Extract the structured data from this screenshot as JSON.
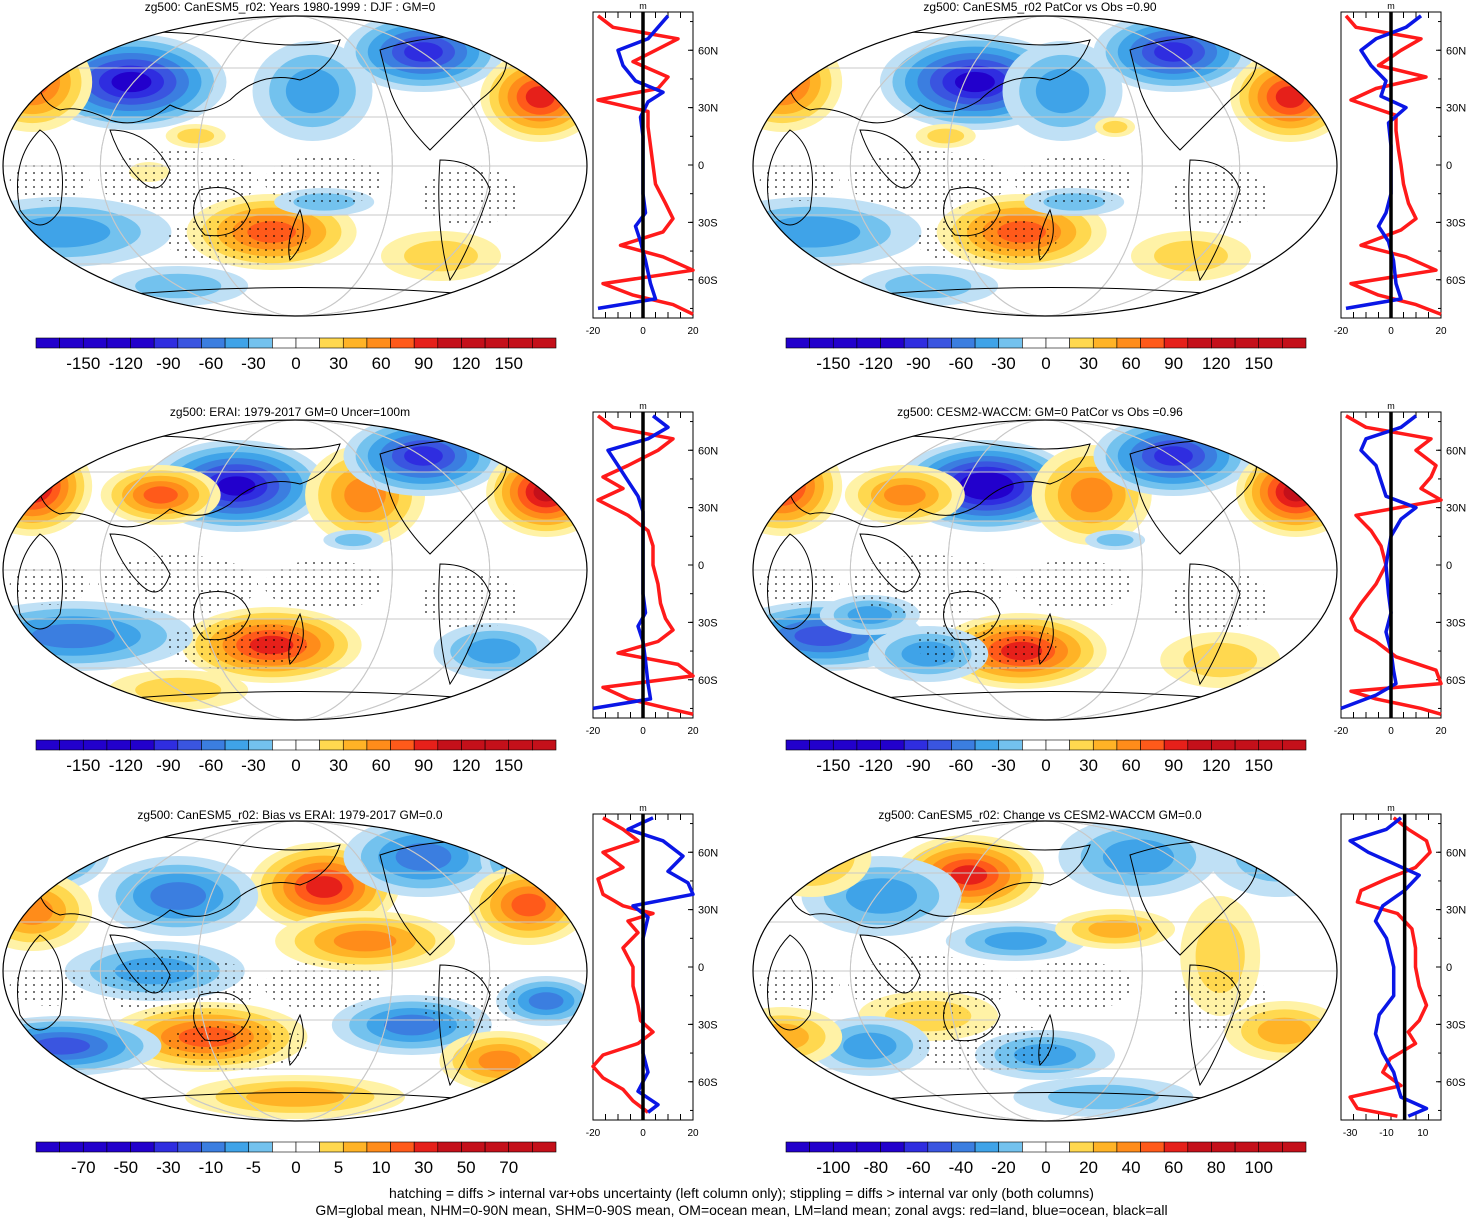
{
  "colors": {
    "warm": [
      "#ffffff",
      "#fff2a6",
      "#ffd84f",
      "#ffb326",
      "#ff8c1a",
      "#ff5a1a",
      "#e6201a",
      "#c4101a"
    ],
    "cool": [
      "#ffffff",
      "#bfe0f5",
      "#73c2ee",
      "#3fa3e8",
      "#3b7ee0",
      "#3a55e0",
      "#2f2de0",
      "#2200cc"
    ],
    "land_profile": "#ff1a1a",
    "ocean_profile": "#0a16e6",
    "all_profile": "#000000",
    "grid": "#c8c8c8"
  },
  "footer": {
    "line1": "hatching = diffs > internal var+obs uncertainty (left column only); stippling = diffs > internal var only (both columns)",
    "line2": "GM=global mean, NHM=0-90N mean, SHM=0-90S mean, OM=ocean mean, LM=land mean; zonal avgs: red=land, blue=ocean, black=all"
  },
  "panels": [
    {
      "title": "zg500: CanESM5_r02: Years 1980-1999 : DJF : GM=0",
      "colorbar": {
        "labels": [
          "-150",
          "-120",
          "-90",
          "-60",
          "-30",
          "0",
          "30",
          "60",
          "90",
          "120",
          "150"
        ],
        "n_bins": 22
      },
      "profile": {
        "unit": "m",
        "xticks": [
          "-20",
          "0",
          "20"
        ],
        "xlim": [
          -20,
          20
        ],
        "lat_labels": [
          "60N",
          "30N",
          "0",
          "30S",
          "60S"
        ],
        "lat_values": [
          60,
          30,
          0,
          -30,
          -60
        ],
        "blue": [
          [
            78,
            10
          ],
          [
            72,
            6
          ],
          [
            66,
            2
          ],
          [
            60,
            -10
          ],
          [
            52,
            -8
          ],
          [
            44,
            -3
          ],
          [
            38,
            8
          ],
          [
            33,
            2
          ],
          [
            25,
            -1
          ],
          [
            15,
            0
          ],
          [
            0,
            0
          ],
          [
            -15,
            0
          ],
          [
            -25,
            1
          ],
          [
            -32,
            -3
          ],
          [
            -40,
            -1
          ],
          [
            -50,
            1
          ],
          [
            -62,
            3
          ],
          [
            -70,
            5
          ],
          [
            -75,
            -18
          ]
        ],
        "red": [
          [
            78,
            -18
          ],
          [
            72,
            -12
          ],
          [
            66,
            14
          ],
          [
            60,
            5
          ],
          [
            54,
            -4
          ],
          [
            46,
            10
          ],
          [
            40,
            6
          ],
          [
            34,
            -18
          ],
          [
            28,
            2
          ],
          [
            20,
            2
          ],
          [
            10,
            3
          ],
          [
            0,
            4
          ],
          [
            -10,
            5
          ],
          [
            -20,
            9
          ],
          [
            -28,
            12
          ],
          [
            -35,
            8
          ],
          [
            -42,
            -9
          ],
          [
            -48,
            8
          ],
          [
            -55,
            20
          ],
          [
            -62,
            -16
          ],
          [
            -68,
            -4
          ],
          [
            -73,
            12
          ],
          [
            -78,
            20
          ]
        ]
      }
    },
    {
      "title": "zg500: CanESM5_r02 PatCor vs Obs =0.90",
      "colorbar": {
        "labels": [
          "-150",
          "-120",
          "-90",
          "-60",
          "-30",
          "0",
          "30",
          "60",
          "90",
          "120",
          "150"
        ],
        "n_bins": 22
      },
      "profile": {
        "unit": "m",
        "xticks": [
          "-20",
          "0",
          "20"
        ],
        "xlim": [
          -20,
          20
        ],
        "lat_labels": [
          "60N",
          "30N",
          "0",
          "30S",
          "60S"
        ],
        "lat_values": [
          60,
          30,
          0,
          -30,
          -60
        ],
        "blue": [
          [
            78,
            12
          ],
          [
            72,
            6
          ],
          [
            66,
            -6
          ],
          [
            60,
            -12
          ],
          [
            52,
            -8
          ],
          [
            44,
            -2
          ],
          [
            36,
            -4
          ],
          [
            30,
            6
          ],
          [
            22,
            -1
          ],
          [
            10,
            0
          ],
          [
            0,
            0
          ],
          [
            -15,
            0
          ],
          [
            -25,
            -2
          ],
          [
            -32,
            -5
          ],
          [
            -40,
            -1
          ],
          [
            -50,
            1
          ],
          [
            -62,
            2
          ],
          [
            -70,
            4
          ],
          [
            -75,
            -18
          ]
        ],
        "red": [
          [
            78,
            -18
          ],
          [
            72,
            -14
          ],
          [
            66,
            12
          ],
          [
            60,
            4
          ],
          [
            52,
            -5
          ],
          [
            46,
            14
          ],
          [
            40,
            -6
          ],
          [
            34,
            -16
          ],
          [
            26,
            2
          ],
          [
            18,
            2
          ],
          [
            8,
            3
          ],
          [
            0,
            4
          ],
          [
            -10,
            5
          ],
          [
            -20,
            7
          ],
          [
            -28,
            10
          ],
          [
            -34,
            4
          ],
          [
            -42,
            -12
          ],
          [
            -48,
            6
          ],
          [
            -55,
            18
          ],
          [
            -62,
            -16
          ],
          [
            -68,
            -5
          ],
          [
            -73,
            10
          ],
          [
            -78,
            20
          ]
        ]
      }
    },
    {
      "title": "zg500: ERAI: 1979-2017 GM=0 Uncer=100m",
      "colorbar": {
        "labels": [
          "-150",
          "-120",
          "-90",
          "-60",
          "-30",
          "0",
          "30",
          "60",
          "90",
          "120",
          "150"
        ],
        "n_bins": 22
      },
      "profile": {
        "unit": "m",
        "xticks": [
          "-20",
          "0",
          "20"
        ],
        "xlim": [
          -20,
          20
        ],
        "lat_labels": [
          "60N",
          "30N",
          "0",
          "30S",
          "60S"
        ],
        "lat_values": [
          60,
          30,
          0,
          -30,
          -60
        ],
        "blue": [
          [
            78,
            4
          ],
          [
            72,
            10
          ],
          [
            66,
            2
          ],
          [
            60,
            -14
          ],
          [
            52,
            -10
          ],
          [
            44,
            -6
          ],
          [
            36,
            -2
          ],
          [
            28,
            0
          ],
          [
            15,
            0
          ],
          [
            0,
            0
          ],
          [
            -15,
            0
          ],
          [
            -25,
            1
          ],
          [
            -32,
            -2
          ],
          [
            -40,
            0
          ],
          [
            -50,
            1
          ],
          [
            -62,
            2
          ],
          [
            -70,
            3
          ],
          [
            -75,
            -20
          ]
        ],
        "red": [
          [
            78,
            -18
          ],
          [
            72,
            -12
          ],
          [
            66,
            12
          ],
          [
            60,
            6
          ],
          [
            52,
            -6
          ],
          [
            46,
            -16
          ],
          [
            40,
            -8
          ],
          [
            34,
            -18
          ],
          [
            26,
            -6
          ],
          [
            18,
            2
          ],
          [
            10,
            4
          ],
          [
            0,
            4
          ],
          [
            -10,
            6
          ],
          [
            -20,
            7
          ],
          [
            -28,
            9
          ],
          [
            -34,
            12
          ],
          [
            -40,
            6
          ],
          [
            -46,
            -10
          ],
          [
            -52,
            14
          ],
          [
            -58,
            20
          ],
          [
            -64,
            -16
          ],
          [
            -70,
            -6
          ],
          [
            -75,
            10
          ],
          [
            -78,
            20
          ]
        ]
      }
    },
    {
      "title": "zg500: CESM2-WACCM: GM=0 PatCor vs Obs =0.96",
      "colorbar": {
        "labels": [
          "-150",
          "-120",
          "-90",
          "-60",
          "-30",
          "0",
          "30",
          "60",
          "90",
          "120",
          "150"
        ],
        "n_bins": 22
      },
      "profile": {
        "unit": "m",
        "xticks": [
          "-20",
          "0",
          "20"
        ],
        "xlim": [
          -20,
          20
        ],
        "lat_labels": [
          "60N",
          "30N",
          "0",
          "30S",
          "60S"
        ],
        "lat_values": [
          60,
          30,
          0,
          -30,
          -60
        ],
        "blue": [
          [
            78,
            10
          ],
          [
            72,
            4
          ],
          [
            66,
            -10
          ],
          [
            60,
            -12
          ],
          [
            52,
            -6
          ],
          [
            44,
            -4
          ],
          [
            36,
            -2
          ],
          [
            30,
            10
          ],
          [
            24,
            4
          ],
          [
            15,
            0
          ],
          [
            0,
            -2
          ],
          [
            -15,
            -1
          ],
          [
            -25,
            0
          ],
          [
            -35,
            -2
          ],
          [
            -45,
            0
          ],
          [
            -55,
            1
          ],
          [
            -62,
            2
          ],
          [
            -68,
            -6
          ],
          [
            -75,
            -20
          ]
        ],
        "red": [
          [
            78,
            -18
          ],
          [
            72,
            -10
          ],
          [
            66,
            16
          ],
          [
            60,
            10
          ],
          [
            52,
            18
          ],
          [
            46,
            16
          ],
          [
            40,
            12
          ],
          [
            34,
            20
          ],
          [
            26,
            -14
          ],
          [
            18,
            -8
          ],
          [
            10,
            -4
          ],
          [
            0,
            -2
          ],
          [
            -10,
            -6
          ],
          [
            -20,
            -12
          ],
          [
            -28,
            -16
          ],
          [
            -34,
            -14
          ],
          [
            -40,
            -6
          ],
          [
            -48,
            2
          ],
          [
            -55,
            18
          ],
          [
            -62,
            20
          ],
          [
            -66,
            -16
          ],
          [
            -70,
            -6
          ],
          [
            -75,
            12
          ],
          [
            -78,
            20
          ]
        ]
      }
    },
    {
      "title": "zg500: CanESM5_r02: Bias vs ERAI: 1979-2017 GM=0.0",
      "colorbar": {
        "labels": [
          "-70",
          "-50",
          "-30",
          "-10",
          "-5",
          "0",
          "5",
          "10",
          "30",
          "50",
          "70"
        ],
        "n_bins": 22
      },
      "profile": {
        "unit": "m",
        "xticks": [
          "-20",
          "0",
          "20"
        ],
        "xlim": [
          -20,
          20
        ],
        "lat_labels": [
          "60N",
          "30N",
          "0",
          "30S",
          "60S"
        ],
        "lat_values": [
          60,
          30,
          0,
          -30,
          -60
        ],
        "blue": [
          [
            78,
            4
          ],
          [
            72,
            -6
          ],
          [
            66,
            8
          ],
          [
            58,
            16
          ],
          [
            50,
            10
          ],
          [
            44,
            18
          ],
          [
            38,
            20
          ],
          [
            32,
            -4
          ],
          [
            26,
            2
          ],
          [
            15,
            0
          ],
          [
            0,
            0
          ],
          [
            -15,
            0
          ],
          [
            -25,
            0
          ],
          [
            -35,
            0
          ],
          [
            -45,
            0
          ],
          [
            -55,
            2
          ],
          [
            -65,
            -2
          ],
          [
            -72,
            6
          ],
          [
            -76,
            2
          ]
        ],
        "red": [
          [
            78,
            -16
          ],
          [
            72,
            -8
          ],
          [
            66,
            -2
          ],
          [
            60,
            -16
          ],
          [
            52,
            -8
          ],
          [
            46,
            -18
          ],
          [
            38,
            -16
          ],
          [
            32,
            -8
          ],
          [
            28,
            4
          ],
          [
            24,
            -6
          ],
          [
            18,
            -2
          ],
          [
            10,
            -8
          ],
          [
            0,
            -4
          ],
          [
            -10,
            -4
          ],
          [
            -20,
            -2
          ],
          [
            -28,
            -1
          ],
          [
            -34,
            4
          ],
          [
            -40,
            -2
          ],
          [
            -46,
            -16
          ],
          [
            -52,
            -20
          ],
          [
            -58,
            -16
          ],
          [
            -64,
            -8
          ],
          [
            -70,
            -4
          ],
          [
            -76,
            2
          ]
        ]
      }
    },
    {
      "title": "zg500: CanESM5_r02: Change vs CESM2-WACCM GM=0.0",
      "colorbar": {
        "labels": [
          "-100",
          "-80",
          "-60",
          "-40",
          "-20",
          "0",
          "20",
          "40",
          "60",
          "80",
          "100"
        ],
        "n_bins": 22
      },
      "profile": {
        "unit": "m",
        "xticks": [
          "-30",
          "-10",
          "10"
        ],
        "xlim": [
          -35,
          20
        ],
        "lat_labels": [
          "60N",
          "30N",
          "0",
          "30S",
          "60S"
        ],
        "lat_values": [
          60,
          30,
          0,
          -30,
          -60
        ],
        "blue": [
          [
            78,
            -2
          ],
          [
            72,
            -10
          ],
          [
            66,
            -30
          ],
          [
            60,
            -20
          ],
          [
            54,
            -6
          ],
          [
            48,
            8
          ],
          [
            40,
            0
          ],
          [
            32,
            -12
          ],
          [
            24,
            -16
          ],
          [
            15,
            -10
          ],
          [
            0,
            -6
          ],
          [
            -15,
            -6
          ],
          [
            -25,
            -14
          ],
          [
            -35,
            -16
          ],
          [
            -45,
            -12
          ],
          [
            -55,
            -6
          ],
          [
            -62,
            -4
          ],
          [
            -68,
            -2
          ],
          [
            -74,
            12
          ],
          [
            -78,
            2
          ]
        ],
        "red": [
          [
            78,
            -6
          ],
          [
            72,
            2
          ],
          [
            66,
            12
          ],
          [
            60,
            14
          ],
          [
            52,
            6
          ],
          [
            46,
            -10
          ],
          [
            40,
            -24
          ],
          [
            34,
            -26
          ],
          [
            28,
            -4
          ],
          [
            20,
            4
          ],
          [
            10,
            6
          ],
          [
            0,
            6
          ],
          [
            -10,
            8
          ],
          [
            -20,
            12
          ],
          [
            -28,
            8
          ],
          [
            -34,
            2
          ],
          [
            -40,
            6
          ],
          [
            -48,
            -8
          ],
          [
            -55,
            -12
          ],
          [
            -62,
            -2
          ],
          [
            -68,
            -30
          ],
          [
            -74,
            -26
          ],
          [
            -78,
            -4
          ]
        ]
      }
    }
  ]
}
